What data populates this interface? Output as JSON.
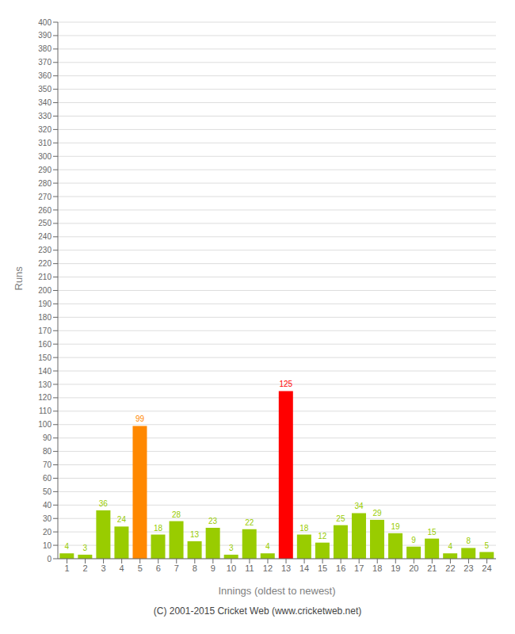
{
  "chart_data": {
    "type": "bar",
    "xlabel": "Innings (oldest to newest)",
    "ylabel": "Runs",
    "footer": "(C) 2001-2015 Cricket Web (www.cricketweb.net)",
    "categories": [
      "1",
      "2",
      "3",
      "4",
      "5",
      "6",
      "7",
      "8",
      "9",
      "10",
      "11",
      "12",
      "13",
      "14",
      "15",
      "16",
      "17",
      "18",
      "19",
      "20",
      "21",
      "22",
      "23",
      "24"
    ],
    "values": [
      4,
      3,
      36,
      24,
      99,
      18,
      28,
      13,
      23,
      3,
      22,
      4,
      125,
      18,
      12,
      25,
      34,
      29,
      19,
      9,
      15,
      4,
      8,
      5
    ],
    "colors": [
      "#99cc00",
      "#99cc00",
      "#99cc00",
      "#99cc00",
      "#ff8800",
      "#99cc00",
      "#99cc00",
      "#99cc00",
      "#99cc00",
      "#99cc00",
      "#99cc00",
      "#99cc00",
      "#ff0000",
      "#99cc00",
      "#99cc00",
      "#99cc00",
      "#99cc00",
      "#99cc00",
      "#99cc00",
      "#99cc00",
      "#99cc00",
      "#99cc00",
      "#99cc00",
      "#99cc00"
    ],
    "ylim": [
      0,
      400
    ],
    "yticks": [
      0,
      10,
      20,
      30,
      40,
      50,
      60,
      70,
      80,
      90,
      100,
      110,
      120,
      130,
      140,
      150,
      160,
      170,
      180,
      190,
      200,
      210,
      220,
      230,
      240,
      250,
      260,
      270,
      280,
      290,
      300,
      310,
      320,
      330,
      340,
      350,
      360,
      370,
      380,
      390,
      400
    ],
    "grid": true,
    "data_labels": true
  }
}
